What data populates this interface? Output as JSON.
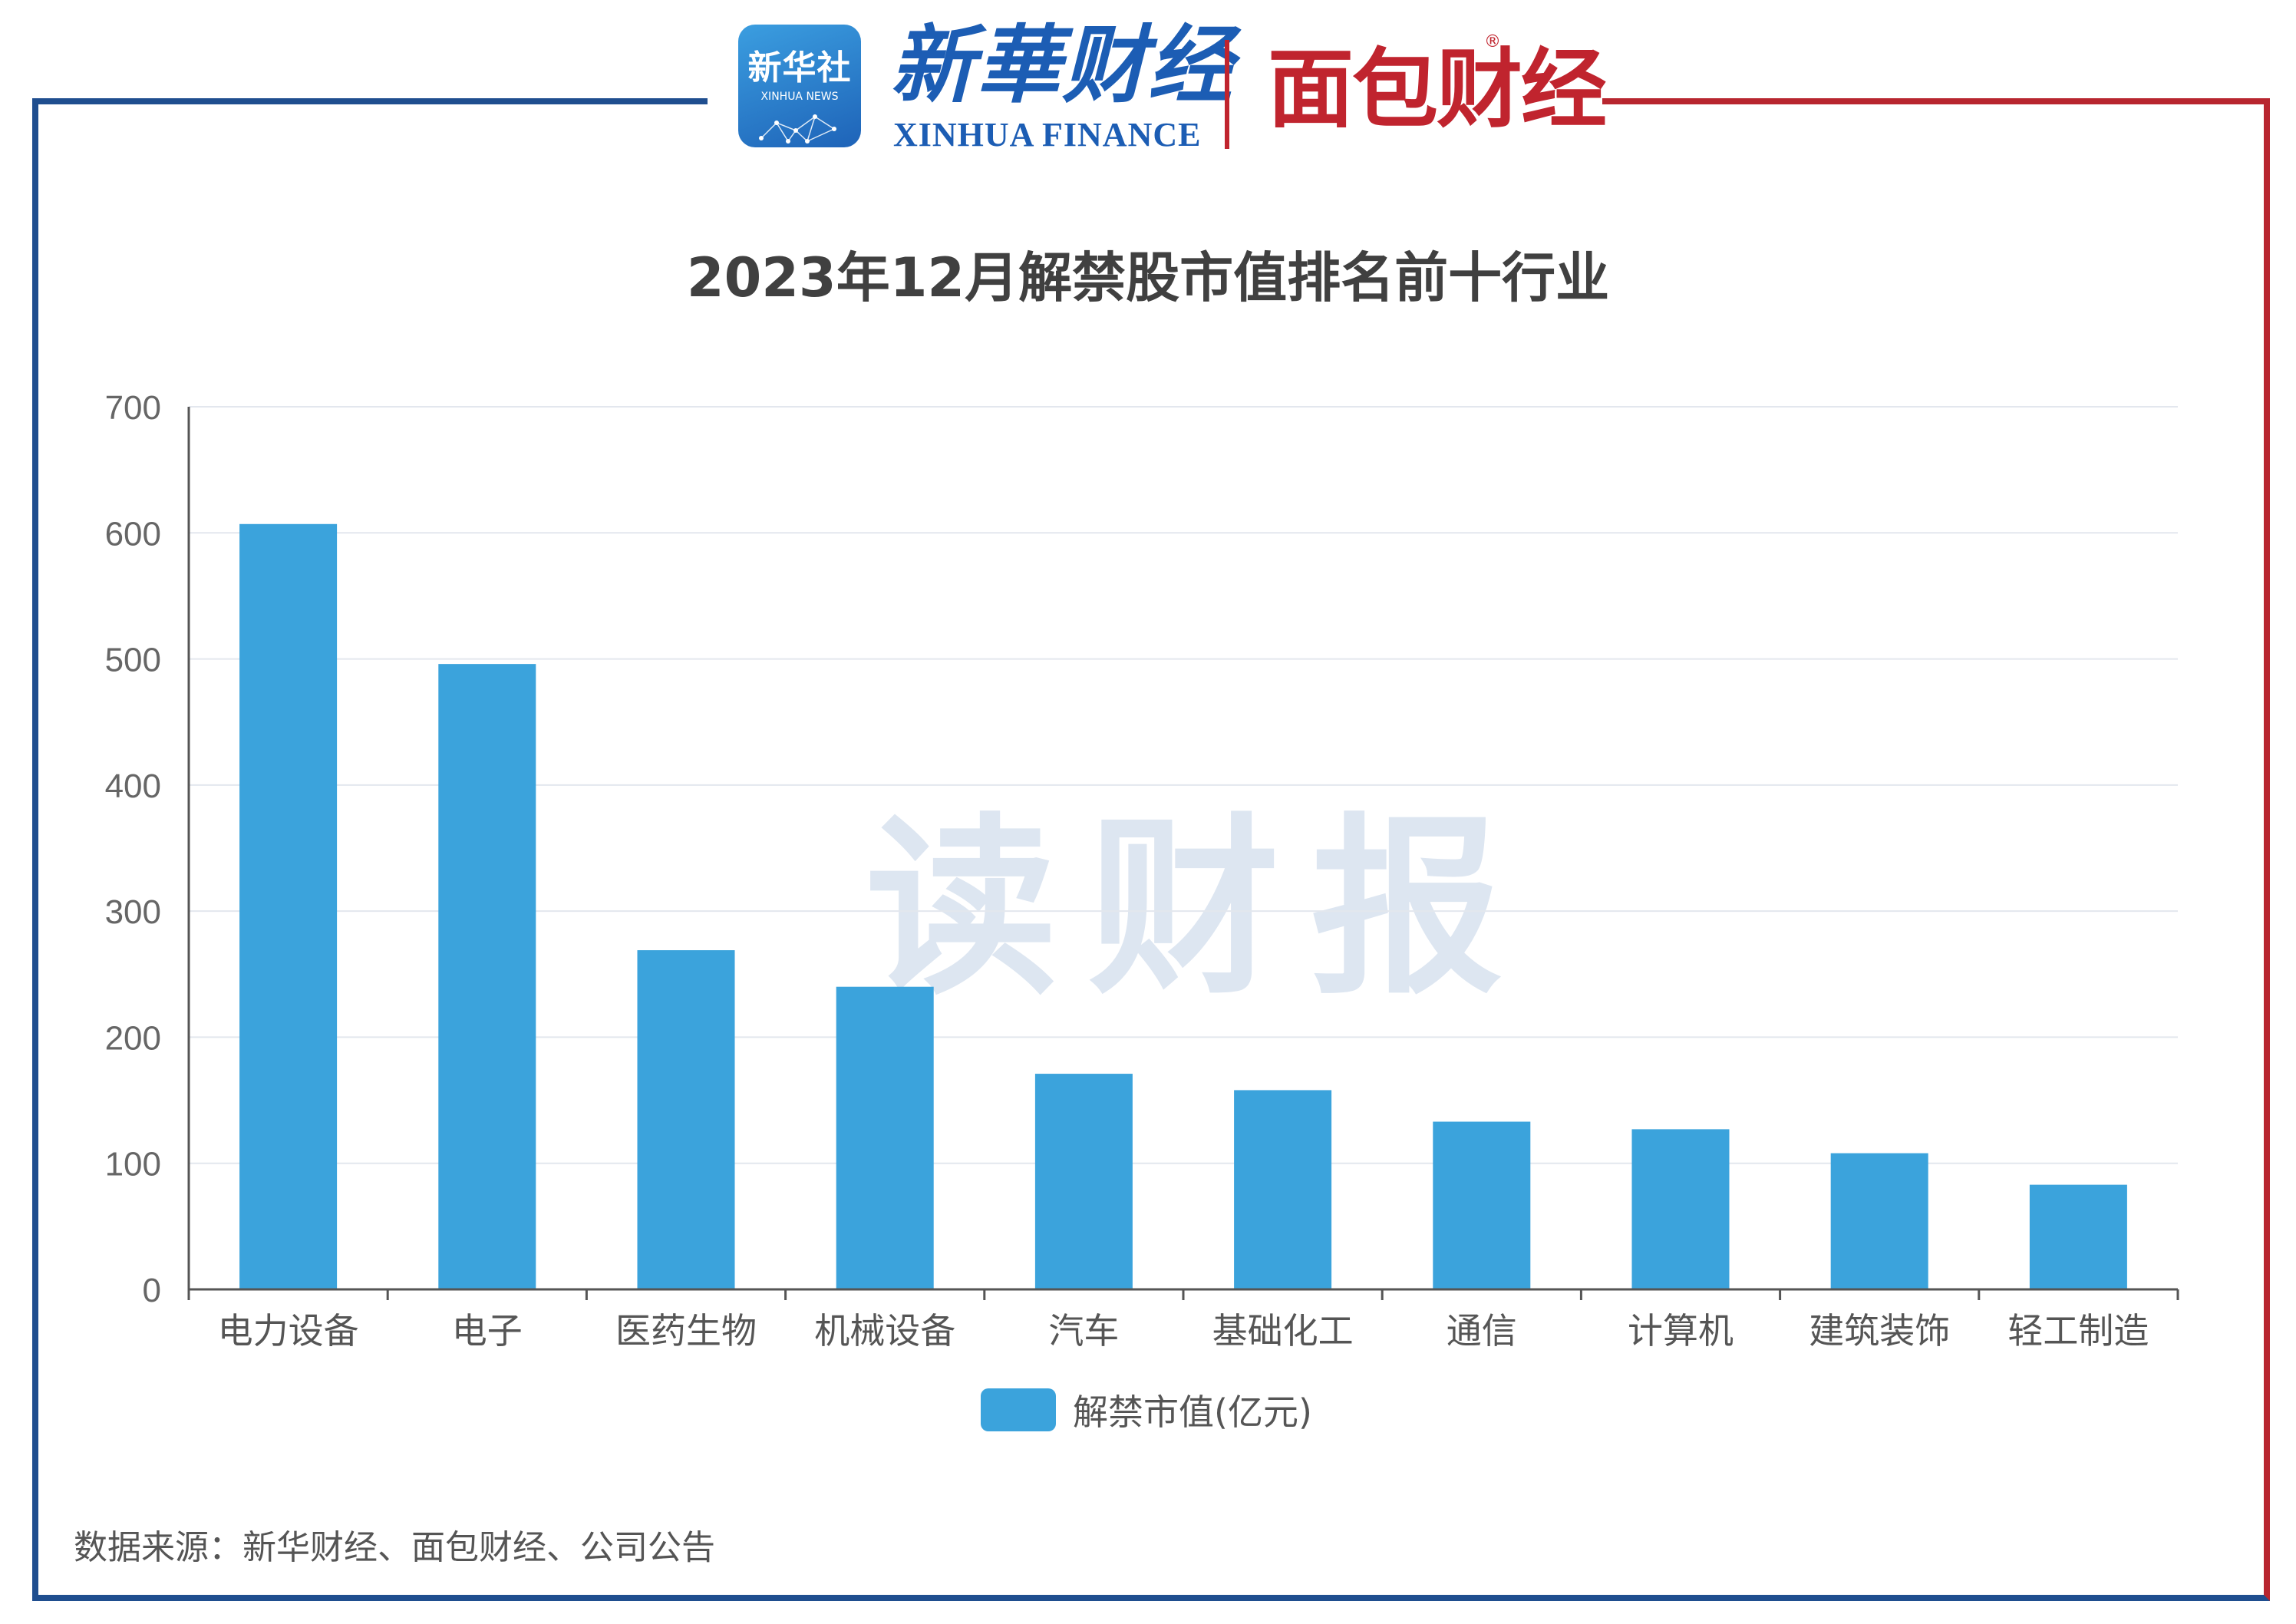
{
  "header": {
    "xinhua_badge_text": "新华社",
    "xinhua_badge_sub": "XINHUA NEWS",
    "xinhua_finance_cn": "新華财经",
    "xinhua_finance_en": "XINHUA FINANCE",
    "mianbao_logo": "面包财经",
    "registered_mark": "®"
  },
  "watermark": "读财报",
  "source_note": "数据来源：新华财经、面包财经、公司公告",
  "colors": {
    "bar": "#3ba3dc",
    "frame_blue": "#1f4e8f",
    "frame_red": "#b8262f"
  },
  "chart_data": {
    "type": "bar",
    "title": "2023年12月解禁股市值排名前十行业",
    "categories": [
      "电力设备",
      "电子",
      "医药生物",
      "机械设备",
      "汽车",
      "基础化工",
      "通信",
      "计算机",
      "建筑装饰",
      "轻工制造"
    ],
    "series": [
      {
        "name": "解禁市值(亿元)",
        "values": [
          607,
          496,
          269,
          240,
          171,
          158,
          133,
          127,
          108,
          83
        ]
      }
    ],
    "yticks": [
      "0",
      "100",
      "200",
      "300",
      "400",
      "500",
      "600",
      "700"
    ],
    "ylim": [
      0,
      700
    ],
    "grid": true,
    "legend": "bottom-center"
  }
}
